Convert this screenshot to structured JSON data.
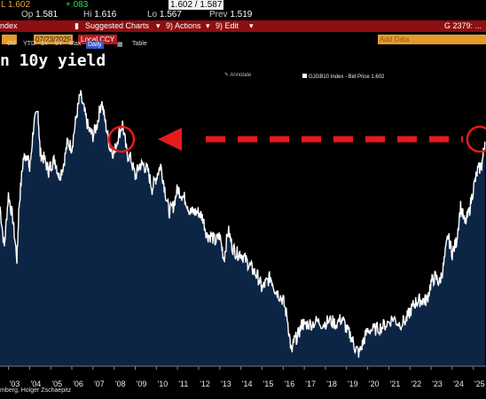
{
  "quote": {
    "last_label": "L",
    "last": "1.602",
    "change": "+.083",
    "bidask": "1.602 / 1.587",
    "open_label": "Op",
    "open": "1.581",
    "high_label": "Hi",
    "high": "1.616",
    "low_label": "Lo",
    "low": "1.567",
    "prev_label": "Prev",
    "prev": "1.519"
  },
  "toolbar": {
    "index_label": "ndex",
    "suggested": "Suggested Charts",
    "actions": "Actions",
    "edit": "Edit",
    "right": "G 2379: ..."
  },
  "datebar": {
    "date": "07/23/2025",
    "ccy": "Local CCY",
    "add_data": "Add Data",
    "ranges": [
      "6M",
      "YTD",
      "1Y",
      "5Y",
      "Max"
    ],
    "frequency": "Daily",
    "table": "Table"
  },
  "chart_title": "n 10y yield",
  "annotate": "Annotate",
  "legend": "GJGB10 Index - Bid Price 1.602",
  "source": "mberg, Holger Zschaepitz",
  "colors": {
    "line": "#ffffff",
    "fill": "#0d2545",
    "arrow": "#e41b1b",
    "background": "#000000"
  },
  "chart_data": {
    "type": "area",
    "x_ticks": [
      "'03",
      "'04",
      "'05",
      "'06",
      "'07",
      "'08",
      "'09",
      "'10",
      "'11",
      "'12",
      "'13",
      "'14",
      "'15",
      "'16",
      "'17",
      "'18",
      "'19",
      "'20",
      "'21",
      "'22",
      "'23",
      "'24",
      "'25"
    ],
    "series": [
      {
        "name": "GJGB10 Index - Bid Price",
        "x": [
          2002.6,
          2002.8,
          2003.0,
          2003.2,
          2003.4,
          2003.5,
          2003.7,
          2003.9,
          2004.0,
          2004.2,
          2004.4,
          2004.5,
          2004.7,
          2004.9,
          2005.0,
          2005.2,
          2005.4,
          2005.6,
          2005.8,
          2006.0,
          2006.2,
          2006.4,
          2006.6,
          2006.8,
          2007.0,
          2007.2,
          2007.4,
          2007.6,
          2007.8,
          2008.0,
          2008.2,
          2008.4,
          2008.6,
          2008.8,
          2009.0,
          2009.2,
          2009.4,
          2009.6,
          2009.8,
          2010.0,
          2010.2,
          2010.4,
          2010.6,
          2010.8,
          2011.0,
          2011.2,
          2011.4,
          2011.6,
          2011.8,
          2012.0,
          2012.2,
          2012.4,
          2012.6,
          2012.8,
          2013.0,
          2013.2,
          2013.4,
          2013.6,
          2013.8,
          2014.0,
          2014.2,
          2014.4,
          2014.6,
          2014.8,
          2015.0,
          2015.2,
          2015.4,
          2015.6,
          2015.8,
          2016.0,
          2016.2,
          2016.4,
          2016.5,
          2016.7,
          2016.9,
          2017.0,
          2017.3,
          2017.6,
          2017.9,
          2018.2,
          2018.5,
          2018.8,
          2019.0,
          2019.2,
          2019.4,
          2019.6,
          2019.8,
          2020.0,
          2020.3,
          2020.6,
          2020.9,
          2021.2,
          2021.5,
          2021.8,
          2022.0,
          2022.2,
          2022.4,
          2022.6,
          2022.8,
          2023.0,
          2023.2,
          2023.4,
          2023.6,
          2023.8,
          2024.0,
          2024.2,
          2024.4,
          2024.6,
          2024.8,
          2025.0,
          2025.2,
          2025.4,
          2025.55
        ],
        "y": [
          1.05,
          0.7,
          1.15,
          0.95,
          0.6,
          1.05,
          1.45,
          1.5,
          1.35,
          1.75,
          1.85,
          1.5,
          1.45,
          1.35,
          1.4,
          1.45,
          1.3,
          1.4,
          1.6,
          1.55,
          1.8,
          2.0,
          1.85,
          1.7,
          1.65,
          1.75,
          1.95,
          1.75,
          1.55,
          1.5,
          1.65,
          1.75,
          1.5,
          1.45,
          1.3,
          1.4,
          1.4,
          1.35,
          1.2,
          1.3,
          1.4,
          1.2,
          1.0,
          1.05,
          1.2,
          1.15,
          1.1,
          1.0,
          1.0,
          1.0,
          0.95,
          0.8,
          0.8,
          0.75,
          0.8,
          0.6,
          0.85,
          0.7,
          0.65,
          0.65,
          0.6,
          0.55,
          0.5,
          0.45,
          0.35,
          0.4,
          0.45,
          0.35,
          0.3,
          0.25,
          0.1,
          -0.2,
          -0.1,
          -0.05,
          0.05,
          0.05,
          0.05,
          0.07,
          0.05,
          0.08,
          0.05,
          0.1,
          0.0,
          -0.05,
          -0.15,
          -0.2,
          -0.1,
          0.0,
          0.0,
          0.02,
          0.05,
          0.1,
          0.05,
          0.08,
          0.15,
          0.22,
          0.25,
          0.25,
          0.25,
          0.4,
          0.45,
          0.4,
          0.55,
          0.8,
          0.65,
          0.75,
          1.05,
          0.9,
          1.0,
          1.2,
          1.35,
          1.4,
          1.6
        ]
      }
    ],
    "arrow_annotation": "dashed red arrow from 2025 level back to 2008 level",
    "grid": false,
    "legend_position": "top-center"
  }
}
